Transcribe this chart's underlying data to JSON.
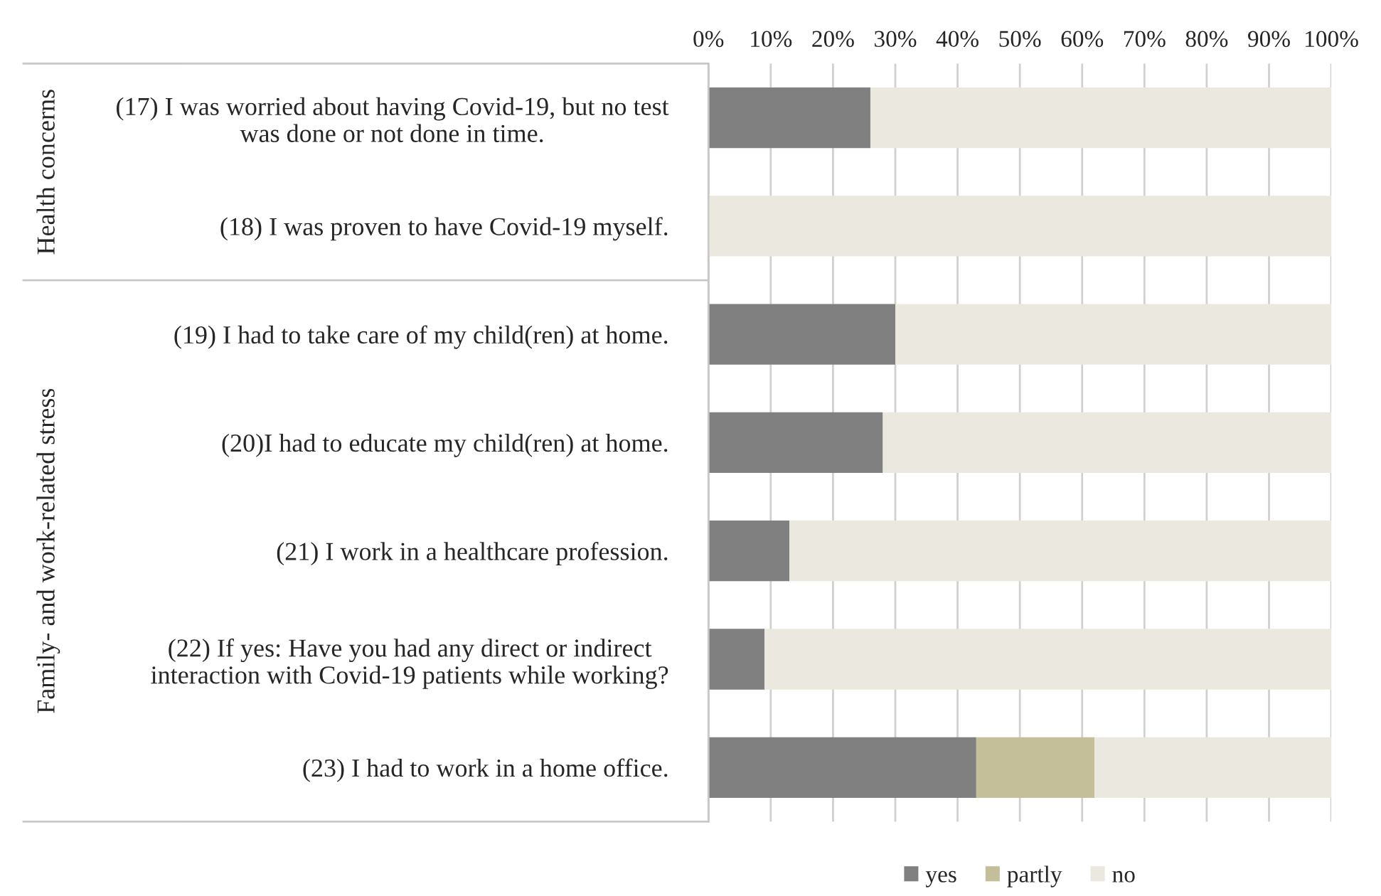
{
  "chart_data": {
    "type": "bar",
    "orientation": "horizontal",
    "stacked": true,
    "categories": [
      "(17) I was worried about having Covid-19, but no test\nwas done or not done in time.",
      "(18) I was proven to have Covid-19 myself.",
      "(19) I had to take care of my child(ren) at home.",
      "(20)I had to educate my child(ren) at home.",
      "(21) I work in a healthcare profession.",
      "(22) If yes: Have you had any direct or indirect\ninteraction with Covid-19 patients while working?",
      "(23) I had to work in a home office."
    ],
    "series": [
      {
        "name": "yes",
        "color": "#808080",
        "values": [
          26,
          0,
          30,
          28,
          13,
          9,
          43
        ]
      },
      {
        "name": "partly",
        "color": "#c4be99",
        "values": [
          0,
          0,
          0,
          0,
          0,
          0,
          19
        ]
      },
      {
        "name": "no",
        "color": "#ebe9df",
        "values": [
          74,
          100,
          70,
          72,
          87,
          91,
          38
        ]
      }
    ],
    "xlim": [
      0,
      100
    ],
    "xticks": [
      {
        "value": 0,
        "label": "0%"
      },
      {
        "value": 10,
        "label": "10%"
      },
      {
        "value": 20,
        "label": "20%"
      },
      {
        "value": 30,
        "label": "30%"
      },
      {
        "value": 40,
        "label": "40%"
      },
      {
        "value": 50,
        "label": "50%"
      },
      {
        "value": 60,
        "label": "60%"
      },
      {
        "value": 70,
        "label": "70%"
      },
      {
        "value": 80,
        "label": "80%"
      },
      {
        "value": 90,
        "label": "90%"
      },
      {
        "value": 100,
        "label": "100%"
      }
    ],
    "annotations": [
      "Health concerns",
      "Family- and work-related stress"
    ],
    "grid": "x",
    "legend": "bottom"
  }
}
